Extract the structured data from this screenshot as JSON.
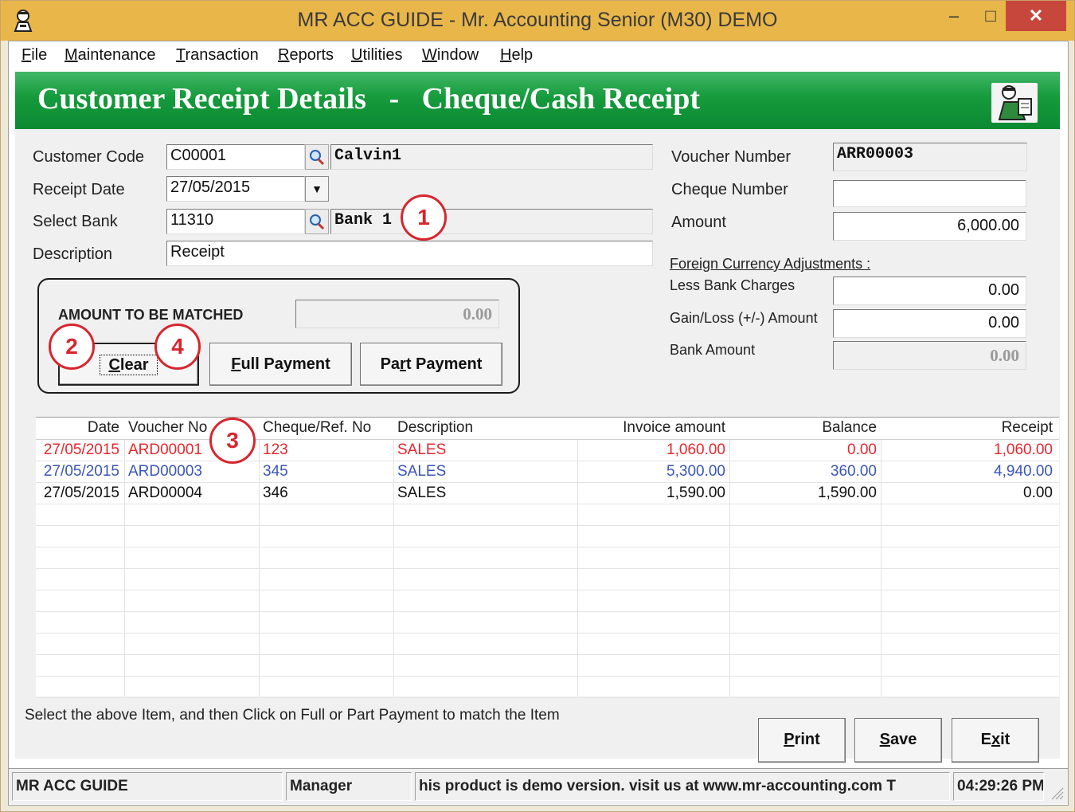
{
  "window": {
    "title": "MR ACC GUIDE - Mr. Accounting Senior (M30) DEMO",
    "min_label": "‒",
    "max_label": "□",
    "close_label": "✕"
  },
  "menu": [
    {
      "first": "F",
      "rest": "ile"
    },
    {
      "first": "M",
      "rest": "aintenance"
    },
    {
      "first": "T",
      "rest": "ransaction"
    },
    {
      "first": "R",
      "rest": "eports"
    },
    {
      "first": "U",
      "rest": "tilities"
    },
    {
      "first": "W",
      "rest": "indow"
    },
    {
      "first": "H",
      "rest": "elp"
    }
  ],
  "banner": {
    "title": "Customer Receipt Details   -   Cheque/Cash Receipt"
  },
  "form": {
    "customer_code_label": "Customer Code",
    "customer_code": "C00001",
    "customer_name": "Calvin1",
    "receipt_date_label": "Receipt Date",
    "receipt_date": "27/05/2015",
    "select_bank_label": "Select Bank",
    "bank_code": "11310",
    "bank_name": "Bank 1",
    "description_label": "Description",
    "description": "Receipt",
    "voucher_number_label": "Voucher Number",
    "voucher_number": "ARR00003",
    "cheque_number_label": "Cheque Number",
    "cheque_number": "",
    "amount_label": "Amount",
    "amount": "6,000.00",
    "foreign_label": "Foreign Currency Adjustments :",
    "bank_charges_label": "Less Bank Charges",
    "bank_charges": "0.00",
    "gain_loss_label": "Gain/Loss (+/-) Amount",
    "gain_loss": "0.00",
    "bank_amount_label": "Bank Amount",
    "bank_amount": "0.00"
  },
  "matching": {
    "label": "AMOUNT TO BE MATCHED",
    "amount": "0.00",
    "clear_first": "C",
    "clear_rest": "lear",
    "full_first": "F",
    "full_rest": "ull Payment",
    "part_pre": "Pa",
    "part_u": "r",
    "part_rest": "t Payment"
  },
  "table": {
    "headers": [
      "Date",
      "Voucher No",
      "Cheque/Ref. No",
      "Description",
      "Invoice amount",
      "Balance",
      "Receipt"
    ],
    "rows": [
      {
        "date": "27/05/2015",
        "voucher": "ARD00001",
        "cheque": "123",
        "description": "SALES",
        "invoice": "1,060.00",
        "balance": "0.00",
        "receipt": "1,060.00",
        "color": "#e8262e"
      },
      {
        "date": "27/05/2015",
        "voucher": "ARD00003",
        "cheque": "345",
        "description": "SALES",
        "invoice": "5,300.00",
        "balance": "360.00",
        "receipt": "4,940.00",
        "color": "#3a56b8"
      },
      {
        "date": "27/05/2015",
        "voucher": "ARD00004",
        "cheque": "346",
        "description": "SALES",
        "invoice": "1,590.00",
        "balance": "1,590.00",
        "receipt": "0.00",
        "color": "#111111"
      }
    ]
  },
  "instruction": "Select the above Item, and then Click on Full or Part Payment to match the Item",
  "actions": {
    "print_first": "P",
    "print_rest": "rint",
    "save_first": "S",
    "save_rest": "ave",
    "exit_first": "E",
    "exit_pre": "",
    "exit_u": "x",
    "exit_rest": "it"
  },
  "callouts": [
    "1",
    "2",
    "3",
    "4"
  ],
  "status": {
    "app": "MR ACC GUIDE",
    "user": "Manager",
    "message": "his product is demo version.  visit us at www.mr-accounting.com T",
    "time": "04:29:26 PM"
  },
  "colors": {
    "titlebar": "#e9b64a",
    "banner": "#159a3c",
    "callout": "#d7262e",
    "row_matched": "#e8262e",
    "row_partial": "#3a56b8"
  }
}
